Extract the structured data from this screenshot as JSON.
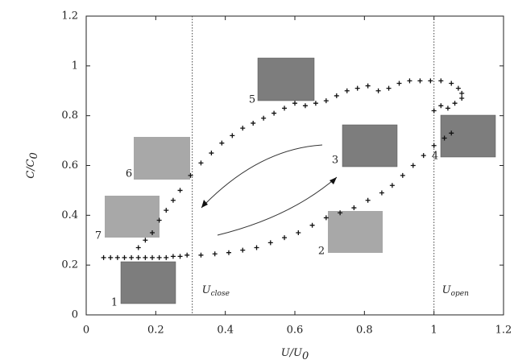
{
  "chart_data": {
    "type": "scatter",
    "x_label": {
      "text": "U/U",
      "sub": "0"
    },
    "y_label": {
      "text": "C/C",
      "sub": "0"
    },
    "xlim": [
      0,
      1.2
    ],
    "ylim": [
      0,
      1.2
    ],
    "xticks": [
      0,
      0.2,
      0.4,
      0.6,
      0.8,
      1,
      1.2
    ],
    "yticks": [
      0,
      0.2,
      0.4,
      0.6,
      0.8,
      1,
      1.2
    ],
    "color": "#111111",
    "x": [
      0.05,
      0.07,
      0.09,
      0.11,
      0.13,
      0.15,
      0.17,
      0.19,
      0.21,
      0.23,
      0.25,
      0.27,
      0.29,
      0.33,
      0.37,
      0.41,
      0.45,
      0.49,
      0.53,
      0.57,
      0.61,
      0.65,
      0.69,
      0.73,
      0.77,
      0.81,
      0.85,
      0.88,
      0.91,
      0.94,
      0.97,
      1.0,
      1.03,
      1.05,
      1.0,
      1.02,
      1.04,
      1.06,
      1.08,
      1.08,
      1.07,
      1.05,
      1.02,
      0.99,
      0.96,
      0.93,
      0.9,
      0.87,
      0.84,
      0.81,
      0.78,
      0.75,
      0.72,
      0.69,
      0.66,
      0.63,
      0.6,
      0.57,
      0.54,
      0.51,
      0.48,
      0.45,
      0.42,
      0.39,
      0.36,
      0.33,
      0.3,
      0.27,
      0.25,
      0.23,
      0.21,
      0.19,
      0.17,
      0.15
    ],
    "values": [
      0.23,
      0.23,
      0.23,
      0.23,
      0.23,
      0.23,
      0.23,
      0.23,
      0.23,
      0.23,
      0.235,
      0.235,
      0.24,
      0.24,
      0.245,
      0.25,
      0.26,
      0.27,
      0.29,
      0.31,
      0.33,
      0.36,
      0.39,
      0.41,
      0.43,
      0.46,
      0.49,
      0.52,
      0.56,
      0.6,
      0.64,
      0.68,
      0.71,
      0.73,
      0.82,
      0.84,
      0.83,
      0.85,
      0.87,
      0.89,
      0.91,
      0.93,
      0.94,
      0.94,
      0.94,
      0.94,
      0.93,
      0.91,
      0.9,
      0.92,
      0.91,
      0.9,
      0.88,
      0.86,
      0.85,
      0.84,
      0.85,
      0.83,
      0.81,
      0.79,
      0.77,
      0.75,
      0.72,
      0.69,
      0.65,
      0.61,
      0.56,
      0.5,
      0.46,
      0.42,
      0.38,
      0.33,
      0.3,
      0.27
    ],
    "vlines": [
      0.305,
      1.0
    ],
    "vline_labels": [
      {
        "text": "U",
        "sub": "close"
      },
      {
        "text": "U",
        "sub": "open"
      }
    ],
    "annotations": [
      "1",
      "2",
      "3",
      "4",
      "5",
      "6",
      "7"
    ]
  }
}
